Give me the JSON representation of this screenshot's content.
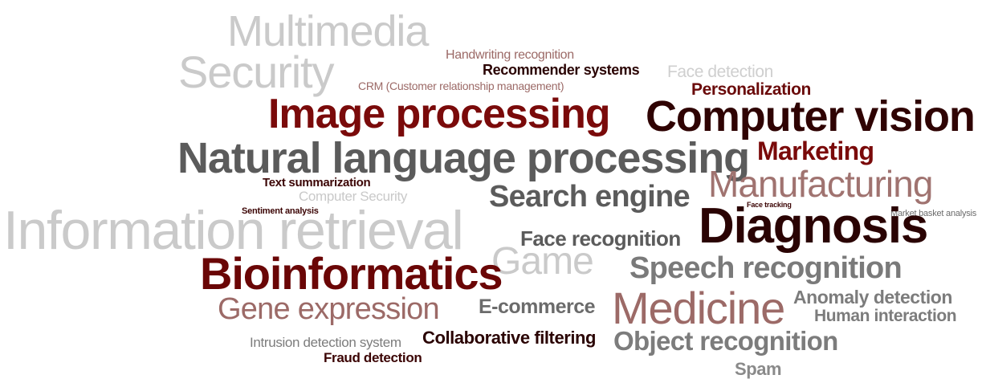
{
  "colors": {
    "maroon": "#7a0a0a",
    "dark_maroon": "#3b0404",
    "mauve": "#9c6a67",
    "dark_gray": "#5b5b5b",
    "mid_gray": "#7c7c7c",
    "light_gray": "#c9c9c9"
  },
  "words": {
    "multimedia": "Multimedia",
    "security": "Security",
    "handwriting_recognition": "Handwriting recognition",
    "recommender_systems": "Recommender systems",
    "face_detection": "Face detection",
    "crm": "CRM (Customer relationship management)",
    "personalization": "Personalization",
    "image_processing": "Image processing",
    "computer_vision": "Computer vision",
    "natural_language_processing": "Natural language processing",
    "marketing": "Marketing",
    "manufacturing": "Manufacturing",
    "text_summarization": "Text summarization",
    "computer_security": "Computer Security",
    "search_engine": "Search engine",
    "sentiment_analysis": "Sentiment analysis",
    "face_tracking": "Face tracking",
    "market_basket_analysis": "Market basket analysis",
    "information_retrieval": "Information retrieval",
    "diagnosis": "Diagnosis",
    "face_recognition": "Face recognition",
    "game": "Game",
    "bioinformatics": "Bioinformatics",
    "speech_recognition": "Speech recognition",
    "gene_expression": "Gene expression",
    "e_commerce": "E-commerce",
    "medicine": "Medicine",
    "anomaly_detection": "Anomaly detection",
    "human_interaction": "Human interaction",
    "intrusion_detection_system": "Intrusion detection system",
    "collaborative_filtering": "Collaborative filtering",
    "object_recognition": "Object recognition",
    "fraud_detection": "Fraud detection",
    "spam": "Spam"
  }
}
